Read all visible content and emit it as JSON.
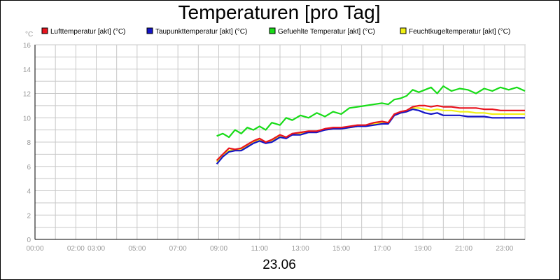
{
  "chart_data": {
    "type": "line",
    "title": "Temperaturen [pro Tag]",
    "date_label": "23.06",
    "y_unit": "°C",
    "ylim": [
      0,
      16
    ],
    "y_ticks": [
      0,
      2,
      4,
      6,
      8,
      10,
      12,
      14,
      16
    ],
    "x_ticks": [
      {
        "label": "00:00",
        "value": 0
      },
      {
        "label": "02:00",
        "value": 2
      },
      {
        "label": "03:00",
        "value": 3
      },
      {
        "label": "05:00",
        "value": 5
      },
      {
        "label": "07:00",
        "value": 7
      },
      {
        "label": "09:00",
        "value": 9
      },
      {
        "label": "11:00",
        "value": 11
      },
      {
        "label": "13:00",
        "value": 13
      },
      {
        "label": "15:00",
        "value": 15
      },
      {
        "label": "17:00",
        "value": 17
      },
      {
        "label": "19:00",
        "value": 19
      },
      {
        "label": "21:00",
        "value": 21
      },
      {
        "label": "23:00",
        "value": 23
      }
    ],
    "xlim": [
      0,
      24
    ],
    "grid": true,
    "legend_position": "top",
    "series": [
      {
        "name": "Lufttemperatur [akt] (°C)",
        "color": "#e8141e",
        "points": [
          [
            8.9,
            6.5
          ],
          [
            9.2,
            7.0
          ],
          [
            9.5,
            7.5
          ],
          [
            9.8,
            7.4
          ],
          [
            10.1,
            7.5
          ],
          [
            10.4,
            7.8
          ],
          [
            10.7,
            8.1
          ],
          [
            11.0,
            8.3
          ],
          [
            11.3,
            8.0
          ],
          [
            11.6,
            8.2
          ],
          [
            12.0,
            8.6
          ],
          [
            12.3,
            8.4
          ],
          [
            12.6,
            8.7
          ],
          [
            13.0,
            8.8
          ],
          [
            13.4,
            8.9
          ],
          [
            13.8,
            8.9
          ],
          [
            14.2,
            9.1
          ],
          [
            14.6,
            9.2
          ],
          [
            15.0,
            9.2
          ],
          [
            15.4,
            9.3
          ],
          [
            15.8,
            9.4
          ],
          [
            16.2,
            9.4
          ],
          [
            16.6,
            9.6
          ],
          [
            17.0,
            9.7
          ],
          [
            17.3,
            9.6
          ],
          [
            17.6,
            10.3
          ],
          [
            17.9,
            10.5
          ],
          [
            18.2,
            10.6
          ],
          [
            18.5,
            10.9
          ],
          [
            18.8,
            11.0
          ],
          [
            19.1,
            11.0
          ],
          [
            19.4,
            10.9
          ],
          [
            19.7,
            11.0
          ],
          [
            20.0,
            10.9
          ],
          [
            20.4,
            10.9
          ],
          [
            20.8,
            10.8
          ],
          [
            21.2,
            10.8
          ],
          [
            21.6,
            10.8
          ],
          [
            22.0,
            10.7
          ],
          [
            22.4,
            10.7
          ],
          [
            22.8,
            10.6
          ],
          [
            23.2,
            10.6
          ],
          [
            23.6,
            10.6
          ],
          [
            24.0,
            10.6
          ]
        ]
      },
      {
        "name": "Taupunkttemperatur [akt] (°C)",
        "color": "#1414c8",
        "points": [
          [
            8.9,
            6.2
          ],
          [
            9.2,
            6.8
          ],
          [
            9.5,
            7.2
          ],
          [
            9.8,
            7.3
          ],
          [
            10.1,
            7.3
          ],
          [
            10.4,
            7.6
          ],
          [
            10.7,
            7.9
          ],
          [
            11.0,
            8.1
          ],
          [
            11.3,
            7.9
          ],
          [
            11.6,
            8.0
          ],
          [
            12.0,
            8.4
          ],
          [
            12.3,
            8.3
          ],
          [
            12.6,
            8.6
          ],
          [
            13.0,
            8.6
          ],
          [
            13.4,
            8.8
          ],
          [
            13.8,
            8.8
          ],
          [
            14.2,
            9.0
          ],
          [
            14.6,
            9.1
          ],
          [
            15.0,
            9.1
          ],
          [
            15.4,
            9.2
          ],
          [
            15.8,
            9.3
          ],
          [
            16.2,
            9.3
          ],
          [
            16.6,
            9.4
          ],
          [
            17.0,
            9.5
          ],
          [
            17.3,
            9.5
          ],
          [
            17.6,
            10.2
          ],
          [
            17.9,
            10.4
          ],
          [
            18.2,
            10.5
          ],
          [
            18.5,
            10.7
          ],
          [
            18.8,
            10.6
          ],
          [
            19.1,
            10.4
          ],
          [
            19.4,
            10.3
          ],
          [
            19.7,
            10.4
          ],
          [
            20.0,
            10.2
          ],
          [
            20.4,
            10.2
          ],
          [
            20.8,
            10.2
          ],
          [
            21.2,
            10.1
          ],
          [
            21.6,
            10.1
          ],
          [
            22.0,
            10.1
          ],
          [
            22.4,
            10.0
          ],
          [
            22.8,
            10.0
          ],
          [
            23.2,
            10.0
          ],
          [
            23.6,
            10.0
          ],
          [
            24.0,
            10.0
          ]
        ]
      },
      {
        "name": "Gefuehlte Temperatur [akt] (°C)",
        "color": "#18dc18",
        "points": [
          [
            8.9,
            8.5
          ],
          [
            9.2,
            8.7
          ],
          [
            9.5,
            8.4
          ],
          [
            9.8,
            9.0
          ],
          [
            10.1,
            8.7
          ],
          [
            10.4,
            9.2
          ],
          [
            10.7,
            9.0
          ],
          [
            11.0,
            9.3
          ],
          [
            11.3,
            9.0
          ],
          [
            11.6,
            9.6
          ],
          [
            12.0,
            9.4
          ],
          [
            12.3,
            10.0
          ],
          [
            12.6,
            9.8
          ],
          [
            13.0,
            10.2
          ],
          [
            13.4,
            10.0
          ],
          [
            13.8,
            10.4
          ],
          [
            14.2,
            10.1
          ],
          [
            14.6,
            10.5
          ],
          [
            15.0,
            10.3
          ],
          [
            15.4,
            10.8
          ],
          [
            15.8,
            10.9
          ],
          [
            16.2,
            11.0
          ],
          [
            16.6,
            11.1
          ],
          [
            17.0,
            11.2
          ],
          [
            17.3,
            11.1
          ],
          [
            17.6,
            11.5
          ],
          [
            17.9,
            11.6
          ],
          [
            18.2,
            11.8
          ],
          [
            18.5,
            12.3
          ],
          [
            18.8,
            12.1
          ],
          [
            19.1,
            12.3
          ],
          [
            19.4,
            12.5
          ],
          [
            19.7,
            12.0
          ],
          [
            20.0,
            12.6
          ],
          [
            20.4,
            12.2
          ],
          [
            20.8,
            12.4
          ],
          [
            21.2,
            12.3
          ],
          [
            21.6,
            12.0
          ],
          [
            22.0,
            12.4
          ],
          [
            22.4,
            12.2
          ],
          [
            22.8,
            12.5
          ],
          [
            23.2,
            12.3
          ],
          [
            23.6,
            12.5
          ],
          [
            24.0,
            12.2
          ]
        ]
      },
      {
        "name": "Feuchtkugeltemperatur [akt] (°C)",
        "color": "#f0f014",
        "points": [
          [
            8.9,
            6.4
          ],
          [
            9.2,
            6.9
          ],
          [
            9.5,
            7.3
          ],
          [
            9.8,
            7.4
          ],
          [
            10.1,
            7.4
          ],
          [
            10.4,
            7.7
          ],
          [
            10.7,
            8.0
          ],
          [
            11.0,
            8.2
          ],
          [
            11.3,
            8.0
          ],
          [
            11.6,
            8.1
          ],
          [
            12.0,
            8.5
          ],
          [
            12.3,
            8.4
          ],
          [
            12.6,
            8.6
          ],
          [
            13.0,
            8.7
          ],
          [
            13.4,
            8.8
          ],
          [
            13.8,
            8.9
          ],
          [
            14.2,
            9.0
          ],
          [
            14.6,
            9.1
          ],
          [
            15.0,
            9.1
          ],
          [
            15.4,
            9.2
          ],
          [
            15.8,
            9.3
          ],
          [
            16.2,
            9.4
          ],
          [
            16.6,
            9.5
          ],
          [
            17.0,
            9.6
          ],
          [
            17.3,
            9.6
          ],
          [
            17.6,
            10.2
          ],
          [
            17.9,
            10.4
          ],
          [
            18.2,
            10.5
          ],
          [
            18.5,
            10.8
          ],
          [
            18.8,
            10.8
          ],
          [
            19.1,
            10.7
          ],
          [
            19.4,
            10.6
          ],
          [
            19.7,
            10.7
          ],
          [
            20.0,
            10.6
          ],
          [
            20.4,
            10.6
          ],
          [
            20.8,
            10.5
          ],
          [
            21.2,
            10.5
          ],
          [
            21.6,
            10.4
          ],
          [
            22.0,
            10.4
          ],
          [
            22.4,
            10.3
          ],
          [
            22.8,
            10.3
          ],
          [
            23.2,
            10.3
          ],
          [
            23.6,
            10.3
          ],
          [
            24.0,
            10.3
          ]
        ]
      }
    ]
  }
}
